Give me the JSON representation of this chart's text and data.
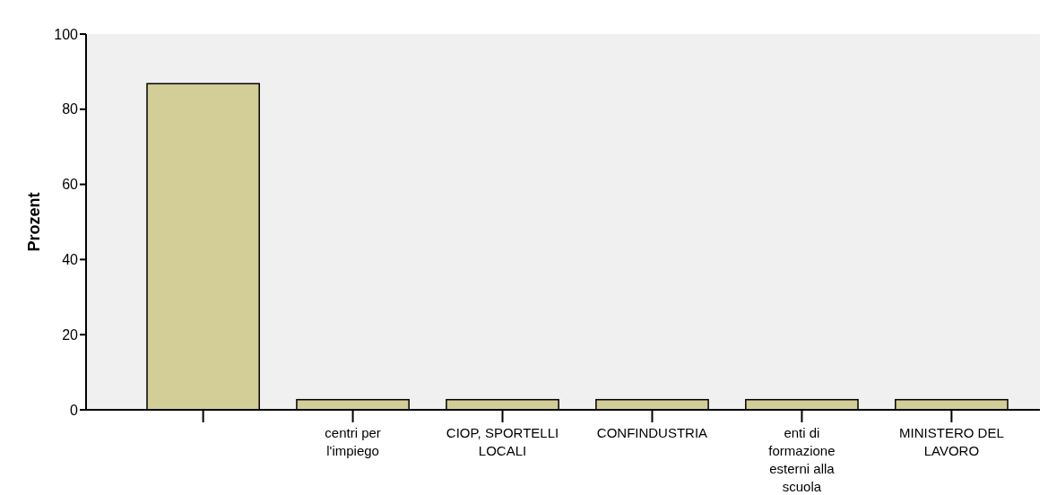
{
  "chart_data": {
    "type": "bar",
    "ylabel": "Prozent",
    "categories": [
      null,
      "centri per l'impiego",
      "CIOP, SPORTELLI LOCALI",
      "CONFINDUSTRIA",
      "enti di formazione esterni alla scuola",
      "MINISTERO DEL LAVORO"
    ],
    "values": [
      86.8,
      2.7,
      2.7,
      2.7,
      2.7,
      2.7
    ],
    "color": "#d3ce98",
    "ylim": [
      0,
      100
    ],
    "yticks": [
      0,
      20,
      40,
      60,
      80,
      100
    ],
    "grid": false
  }
}
